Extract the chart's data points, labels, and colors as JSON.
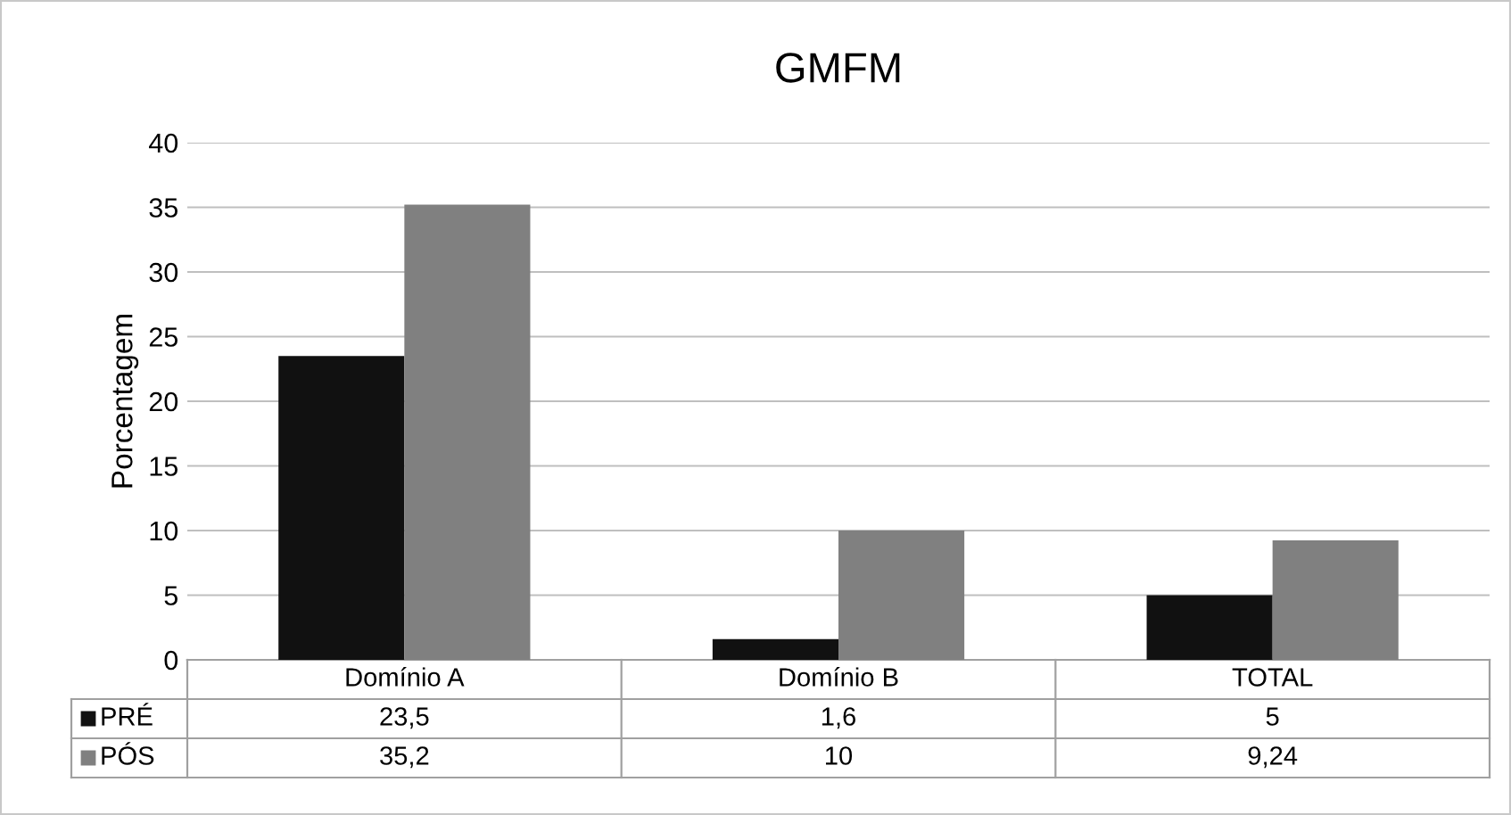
{
  "chart_data": {
    "type": "bar",
    "title": "GMFM",
    "ylabel": "Porcentagem",
    "categories": [
      "Domínio A",
      "Domínio B",
      "TOTAL"
    ],
    "series": [
      {
        "name": "PRÉ",
        "color": "#111111",
        "values": [
          23.5,
          1.6,
          5
        ],
        "value_labels": [
          "23,5",
          "1,6",
          "5"
        ]
      },
      {
        "name": "PÓS",
        "color": "#808080",
        "values": [
          35.2,
          10,
          9.24
        ],
        "value_labels": [
          "35,2",
          "10",
          "9,24"
        ]
      }
    ],
    "ylim": [
      0,
      40
    ],
    "yticks": [
      0,
      5,
      10,
      15,
      20,
      25,
      30,
      35,
      40
    ],
    "grid": "y",
    "legend": "bottom left"
  }
}
